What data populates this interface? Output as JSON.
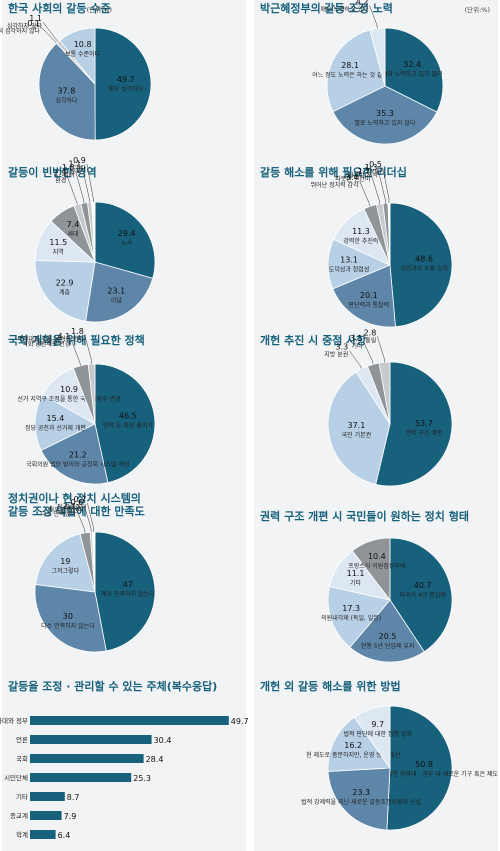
{
  "unit_label": "(단위:%)",
  "colors": {
    "navy": "#17617c",
    "mid": "#5e86a8",
    "light": "#b8d0e6",
    "pale": "#dde7f1",
    "gray": "#8f9499",
    "gray2": "#c7c9cc",
    "white": "#ffffff"
  },
  "chart_data": [
    {
      "type": "pie",
      "title": "한국 사회의 갈등 수준",
      "show_unit": true,
      "slices": [
        {
          "label": "매우 심각하다",
          "value": 49.7,
          "color": "navy"
        },
        {
          "label": "심각하다",
          "value": 37.8,
          "color": "mid"
        },
        {
          "label": "전혀 심각하지 않다",
          "value": 0.1,
          "color": "white"
        },
        {
          "label": "심각하지 않다",
          "value": 1.1,
          "color": "gray2"
        },
        {
          "label": "보통 수준이다",
          "value": 10.8,
          "color": "light"
        }
      ]
    },
    {
      "type": "pie",
      "title": "박근혜정부의 갈등 조정 노력",
      "show_unit": true,
      "slices": [
        {
          "label": "전혀 노력하고 있지 않다",
          "value": 32.4,
          "color": "navy"
        },
        {
          "label": "별로 노력하고 있지 않다",
          "value": 35.3,
          "color": "mid"
        },
        {
          "label": "어느 정도 노력은 하는 것 같다",
          "value": 28.1,
          "color": "light"
        },
        {
          "label": "매우 노력하고 있다",
          "value": 4.2,
          "color": "pale"
        }
      ]
    },
    {
      "type": "pie",
      "title": "갈등이 빈번한 영역",
      "slices": [
        {
          "label": "노사",
          "value": 29.4,
          "color": "navy"
        },
        {
          "label": "이념",
          "value": 23.1,
          "color": "mid"
        },
        {
          "label": "계층",
          "value": 22.9,
          "color": "light"
        },
        {
          "label": "지역",
          "value": 11.5,
          "color": "pale"
        },
        {
          "label": "세대",
          "value": 7.4,
          "color": "gray"
        },
        {
          "label": "환경",
          "value": 1.9,
          "color": "gray2"
        },
        {
          "label": "남녀",
          "value": 1.8,
          "color": "gray"
        },
        {
          "label": "문화",
          "value": 1.1,
          "color": "gray2"
        },
        {
          "label": "기타",
          "value": 0.9,
          "color": "white"
        }
      ]
    },
    {
      "type": "pie",
      "title": "갈등 해소를 위해 필요한 리더십",
      "slices": [
        {
          "label": "국민과의 소통 능력",
          "value": 48.6,
          "color": "navy"
        },
        {
          "label": "판단력과 통찰력",
          "value": 20.1,
          "color": "mid"
        },
        {
          "label": "도덕성과 청렴성",
          "value": 13.1,
          "color": "light"
        },
        {
          "label": "강력한 추진력",
          "value": 11.3,
          "color": "pale"
        },
        {
          "label": "뛰어난 정치력 감각",
          "value": 3.4,
          "color": "gray"
        },
        {
          "label": "따뜻한 인간미",
          "value": 1.7,
          "color": "gray2"
        },
        {
          "label": "다양한 지식",
          "value": 1.3,
          "color": "gray"
        },
        {
          "label": "기타",
          "value": 0.5,
          "color": "white"
        }
      ]
    },
    {
      "type": "pie",
      "title": "국회 개혁을 위해 필요한 정책",
      "slices": [
        {
          "label": "면책 등 특권 줄이기",
          "value": 46.5,
          "color": "navy"
        },
        {
          "label": "국회의원 법안 발의와 공청회 시스템 개선",
          "value": 21.2,
          "color": "mid"
        },
        {
          "label": "정당 공천과 선거제 개편",
          "value": 15.4,
          "color": "light"
        },
        {
          "label": "선거 지역구 조정을 통한 국회의원수 변경",
          "value": 10.9,
          "color": "pale"
        },
        {
          "label": "국회 양원제로 변경",
          "value": 4.1,
          "color": "gray"
        },
        {
          "label": "비례대표 수를 늘려야 한다",
          "value": 1.8,
          "color": "gray2"
        }
      ]
    },
    {
      "type": "pie",
      "title": "개헌 추진 시 중점 사항",
      "slices": [
        {
          "label": "권력 구조 개편",
          "value": 53.7,
          "color": "navy"
        },
        {
          "label": "국민 기본권",
          "value": 37.1,
          "color": "light"
        },
        {
          "label": "지방 분권",
          "value": 3.3,
          "color": "pale"
        },
        {
          "label": "기타",
          "value": 3.1,
          "color": "gray"
        },
        {
          "label": "통일",
          "value": 2.8,
          "color": "gray2"
        }
      ]
    },
    {
      "type": "pie",
      "title": "정치권이나 현 정치 시스템의 갈등 조정 역할에 대한 만족도",
      "title_lines": [
        "정치권이나 현 정치 시스템의",
        "갈등 조정 역할에 대한 만족도"
      ],
      "slices": [
        {
          "label": "매우 만족하지 않는다",
          "value": 47,
          "color": "navy"
        },
        {
          "label": "다소 만족하지 않는다",
          "value": 30,
          "color": "mid"
        },
        {
          "label": "그저그렇다",
          "value": 19,
          "color": "light"
        },
        {
          "label": "다소 만족한다",
          "value": 2.7,
          "color": "gray"
        },
        {
          "label": "매우 만족한다",
          "value": 0.6,
          "color": "gray2"
        },
        {
          "label": "잘 모르겠다",
          "value": 0.7,
          "color": "white"
        }
      ]
    },
    {
      "type": "pie",
      "title": "권력 구조 개편 시 국민들이 원하는 정치 형태",
      "slices": [
        {
          "label": "미국식 4년 중임제",
          "value": 40.7,
          "color": "navy"
        },
        {
          "label": "현행 5년 단임제 유지",
          "value": 20.5,
          "color": "mid"
        },
        {
          "label": "의원내각제 (독일, 일본)",
          "value": 17.3,
          "color": "light"
        },
        {
          "label": "기타",
          "value": 11.1,
          "color": "pale"
        },
        {
          "label": "프랑스식 이원집정부제",
          "value": 10.4,
          "color": "gray"
        }
      ]
    },
    {
      "type": "bar",
      "title": "갈등을 조정 · 관리할 수 있는 주체(복수응답)",
      "categories": [
        "청와대와 정부",
        "언론",
        "국회",
        "시민단체",
        "기타",
        "종교계",
        "학계"
      ],
      "values": [
        49.7,
        30.4,
        28.4,
        25.3,
        8.7,
        7.9,
        6.4
      ]
    },
    {
      "type": "pie",
      "title": "개헌 외 갈등 해소를 위한 방법",
      "slices": [
        {
          "label": "시민사회 의견 수렴 위한 청와대 · 정부 내 새로운 기구 혹은 제도 구성",
          "value": 50.8,
          "color": "navy"
        },
        {
          "label": "법적 강제력을 지닌 새로운 갈등조정위원회 신설",
          "value": 23.3,
          "color": "mid"
        },
        {
          "label": "현 제도로 충분하지만, 운영 방법 개선",
          "value": 16.2,
          "color": "light"
        },
        {
          "label": "법적 판단에 대한 집행 강화",
          "value": 9.7,
          "color": "pale"
        }
      ]
    }
  ]
}
